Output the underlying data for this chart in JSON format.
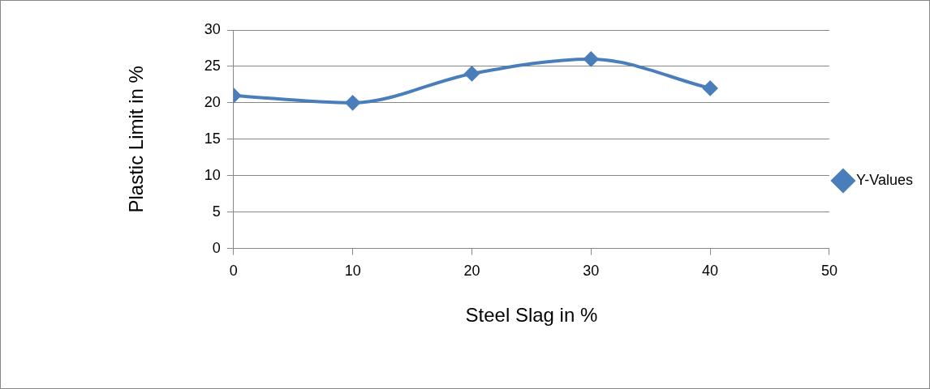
{
  "chart_data": {
    "type": "line",
    "xlabel": "Steel Slag in %",
    "ylabel": "Plastic Limit in %",
    "x": [
      0,
      10,
      20,
      30,
      40
    ],
    "series": [
      {
        "name": "Y-Values",
        "color": "#4a7ebb",
        "values": [
          21,
          20,
          24,
          26,
          22
        ]
      }
    ],
    "xlim": [
      0,
      50
    ],
    "xticks": [
      0,
      10,
      20,
      30,
      40,
      50
    ],
    "ylim": [
      0,
      30
    ],
    "yticks": [
      0,
      5,
      10,
      15,
      20,
      25,
      30
    ],
    "grid": "y",
    "legend": "right",
    "marker": "diamond",
    "line_style": "solid"
  }
}
